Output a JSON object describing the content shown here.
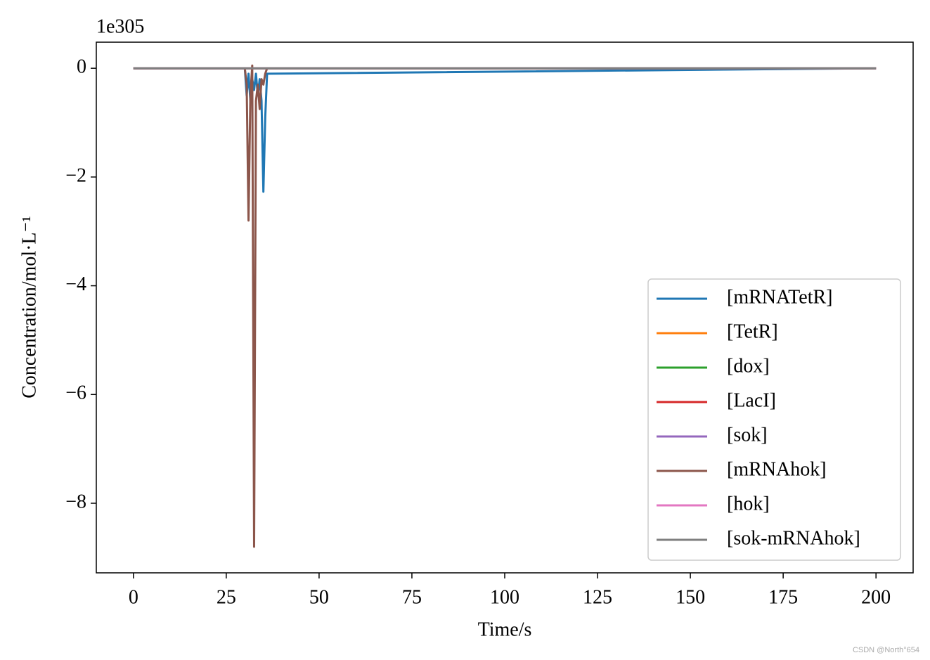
{
  "chart_data": {
    "type": "line",
    "offset_label": "1e305",
    "xlabel": "Time/s",
    "ylabel": "Concentration/mol·L⁻¹",
    "x": [
      0,
      30,
      30.5,
      31,
      31.5,
      32,
      32.5,
      33,
      33.5,
      34,
      34.5,
      35,
      35.5,
      36,
      200
    ],
    "series": [
      {
        "name": "[mRNATetR]",
        "color": "#1f77b4",
        "values": [
          0,
          0,
          -0.5,
          -0.1,
          -0.6,
          -0.2,
          -0.4,
          -0.1,
          -0.5,
          -0.2,
          -0.6,
          -2.27,
          -0.9,
          -0.1,
          0
        ]
      },
      {
        "name": "[TetR]",
        "color": "#ff7f0e",
        "values": [
          0,
          0,
          0,
          0,
          0,
          0,
          0,
          0,
          0,
          0,
          0,
          0,
          0,
          0,
          0
        ]
      },
      {
        "name": "[dox]",
        "color": "#2ca02c",
        "values": [
          0,
          0,
          0,
          0,
          0,
          0,
          0,
          0,
          0,
          0,
          0,
          0,
          0,
          0,
          0
        ]
      },
      {
        "name": "[LacI]",
        "color": "#d62728",
        "values": [
          0,
          0,
          0,
          0,
          0,
          0,
          0,
          0,
          0,
          0,
          0,
          0,
          0,
          0,
          0
        ]
      },
      {
        "name": "[sok]",
        "color": "#9467bd",
        "values": [
          0,
          0,
          0,
          0,
          0,
          0,
          0,
          0,
          0,
          0,
          0,
          0,
          0,
          0,
          0
        ]
      },
      {
        "name": "[mRNAhok]",
        "color": "#8c564b",
        "values": [
          0,
          0,
          -0.3,
          -2.8,
          -0.5,
          0.05,
          -8.8,
          -0.6,
          -0.3,
          -0.75,
          -0.2,
          -0.3,
          -0.1,
          0,
          0
        ]
      },
      {
        "name": "[hok]",
        "color": "#e377c2",
        "values": [
          0,
          0,
          0,
          0,
          0,
          0,
          0,
          0,
          0,
          0,
          0,
          0,
          0,
          0,
          0
        ]
      },
      {
        "name": "[sok-mRNAhok]",
        "color": "#7f7f7f",
        "values": [
          0,
          0,
          0,
          0,
          0,
          0,
          0,
          0,
          0,
          0,
          0,
          0,
          0,
          0,
          0
        ]
      }
    ],
    "xlim": [
      -10,
      210
    ],
    "xticks": [
      0,
      25,
      50,
      75,
      100,
      125,
      150,
      175,
      200
    ],
    "ylim": [
      -9.28,
      0.48
    ],
    "yticks": [
      {
        "value": -8,
        "label": "−8"
      },
      {
        "value": -6,
        "label": "−6"
      },
      {
        "value": -4,
        "label": "−4"
      },
      {
        "value": -2,
        "label": "−2"
      },
      0
    ],
    "grid": false,
    "legend_position": "lower right"
  },
  "watermark": "CSDN @North°654"
}
